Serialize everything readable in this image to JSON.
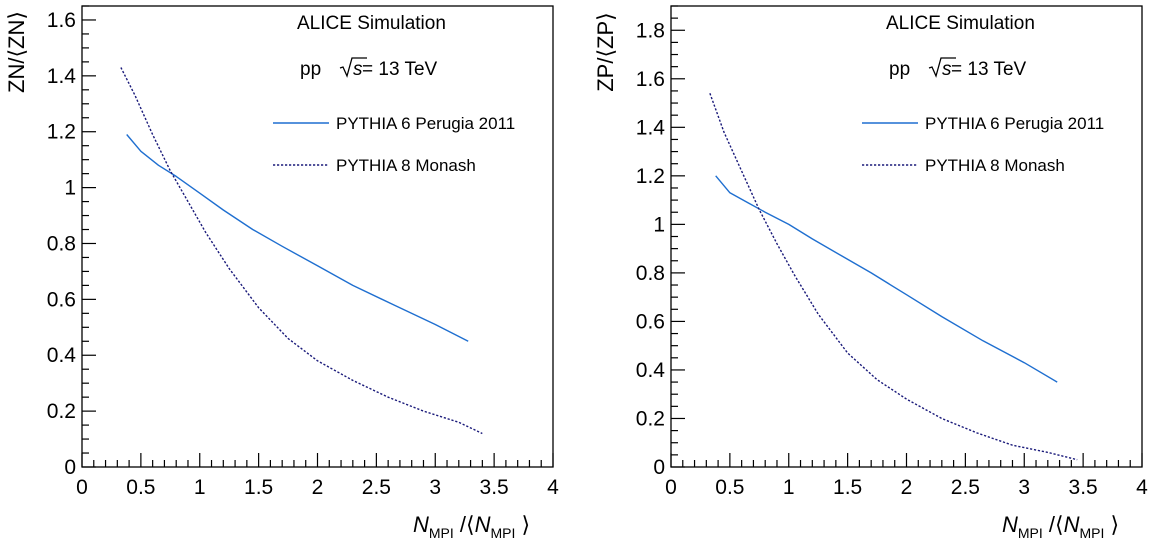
{
  "colors": {
    "line": "#1f6fd0",
    "dotted": "#1a1a7a",
    "axis": "#000000"
  },
  "panels": [
    {
      "ylabel": "ZN/⟨ZN⟩",
      "xlabel_parts": {
        "n": "N",
        "sub": "MPI"
      },
      "notes": {
        "title": "ALICE Simulation",
        "energy_prefix": "pp",
        "energy_s": "s",
        "energy_suffix": " = 13 TeV"
      },
      "legend": [
        "PYTHIA 6 Perugia 2011",
        "PYTHIA 8 Monash"
      ],
      "xticks": [
        "0",
        "0.5",
        "1",
        "1.5",
        "2",
        "2.5",
        "3",
        "3.5",
        "4"
      ],
      "yticks": [
        "0",
        "0.2",
        "0.4",
        "0.6",
        "0.8",
        "1",
        "1.2",
        "1.4",
        "1.6"
      ]
    },
    {
      "ylabel": "ZP/⟨ZP⟩",
      "xlabel_parts": {
        "n": "N",
        "sub": "MPI"
      },
      "notes": {
        "title": "ALICE Simulation",
        "energy_prefix": "pp",
        "energy_s": "s",
        "energy_suffix": " = 13 TeV"
      },
      "legend": [
        "PYTHIA 6 Perugia 2011",
        "PYTHIA 8 Monash"
      ],
      "xticks": [
        "0",
        "0.5",
        "1",
        "1.5",
        "2",
        "2.5",
        "3",
        "3.5",
        "4"
      ],
      "yticks": [
        "0",
        "0.2",
        "0.4",
        "0.6",
        "0.8",
        "1",
        "1.2",
        "1.4",
        "1.6",
        "1.8"
      ]
    }
  ],
  "chart_data": [
    {
      "type": "line",
      "xlabel": "N_MPI/⟨N_MPI⟩",
      "ylabel": "ZN/⟨ZN⟩",
      "xlim": [
        0,
        4
      ],
      "ylim": [
        0,
        1.65
      ],
      "grid": false,
      "legend_position": "top-right",
      "annotations": [
        "ALICE Simulation",
        "pp √s = 13 TeV"
      ],
      "series": [
        {
          "name": "PYTHIA 6 Perugia 2011",
          "style": "solid",
          "x": [
            0.38,
            0.5,
            0.65,
            0.8,
            1.0,
            1.2,
            1.45,
            1.7,
            2.0,
            2.3,
            2.65,
            3.0,
            3.28
          ],
          "y": [
            1.19,
            1.13,
            1.08,
            1.04,
            0.98,
            0.92,
            0.85,
            0.79,
            0.72,
            0.65,
            0.58,
            0.51,
            0.45
          ]
        },
        {
          "name": "PYTHIA 8 Monash",
          "style": "dotted",
          "x": [
            0.33,
            0.45,
            0.6,
            0.75,
            0.9,
            1.05,
            1.25,
            1.5,
            1.75,
            2.0,
            2.3,
            2.6,
            2.9,
            3.2,
            3.4
          ],
          "y": [
            1.43,
            1.33,
            1.19,
            1.06,
            0.95,
            0.84,
            0.71,
            0.57,
            0.46,
            0.38,
            0.31,
            0.25,
            0.2,
            0.16,
            0.12
          ]
        }
      ]
    },
    {
      "type": "line",
      "xlabel": "N_MPI/⟨N_MPI⟩",
      "ylabel": "ZP/⟨ZP⟩",
      "xlim": [
        0,
        4
      ],
      "ylim": [
        0,
        1.9
      ],
      "grid": false,
      "legend_position": "top-right",
      "annotations": [
        "ALICE Simulation",
        "pp √s = 13 TeV"
      ],
      "series": [
        {
          "name": "PYTHIA 6 Perugia 2011",
          "style": "solid",
          "x": [
            0.38,
            0.5,
            0.65,
            0.8,
            1.0,
            1.2,
            1.45,
            1.7,
            2.0,
            2.3,
            2.65,
            3.0,
            3.28
          ],
          "y": [
            1.2,
            1.13,
            1.09,
            1.05,
            1.0,
            0.94,
            0.87,
            0.8,
            0.71,
            0.62,
            0.52,
            0.43,
            0.35
          ]
        },
        {
          "name": "PYTHIA 8 Monash",
          "style": "dotted",
          "x": [
            0.33,
            0.45,
            0.6,
            0.75,
            0.9,
            1.05,
            1.25,
            1.5,
            1.75,
            2.0,
            2.3,
            2.6,
            2.9,
            3.2,
            3.45
          ],
          "y": [
            1.54,
            1.38,
            1.22,
            1.06,
            0.92,
            0.79,
            0.63,
            0.47,
            0.36,
            0.28,
            0.2,
            0.14,
            0.09,
            0.06,
            0.03
          ]
        }
      ]
    }
  ]
}
